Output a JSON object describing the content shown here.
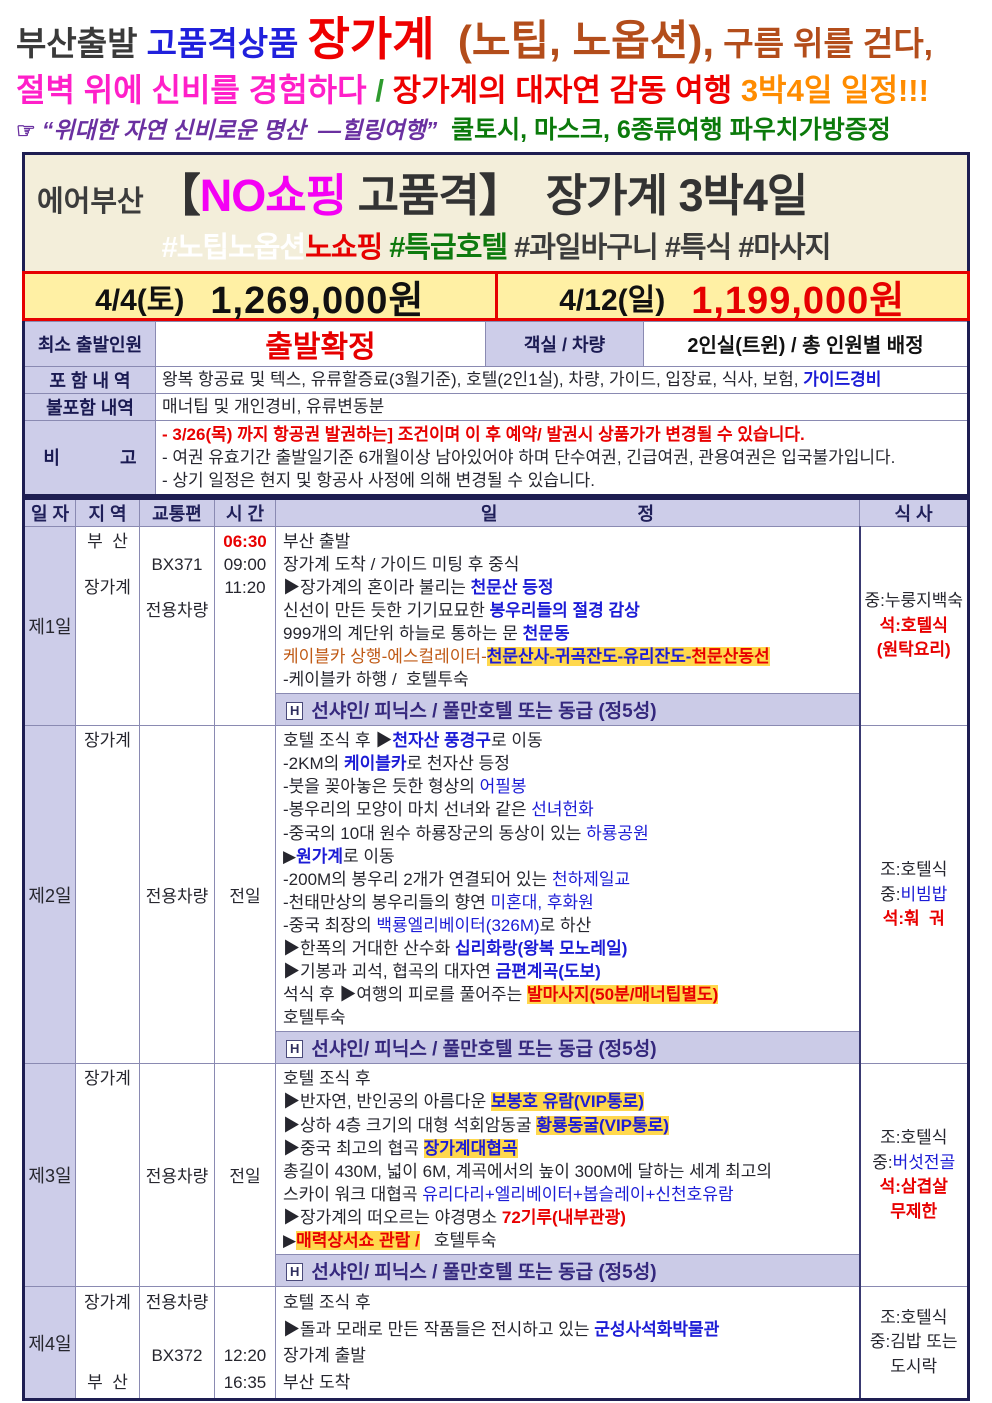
{
  "header": {
    "l1": {
      "a": "부산출발 ",
      "b": "고품격상품 ",
      "c": "장가계",
      "d": "  (노팁, 노옵션),",
      "e": " 구름 위를 걷다,"
    },
    "l2": {
      "a": "절벽 위에 신비를 경험하다 ",
      "b": "/ ",
      "c": "장가계의 대자연 감동 여행 ",
      "d": "3박4일 일정!!!"
    },
    "l3": {
      "a": "☞ ",
      "b": "“위대한 자연 신비로운 명산  —힐링여행”",
      "c": "  쿨토시, 마스크, 6종류여행 파우치가방증정"
    }
  },
  "title": {
    "airline": "에어부산",
    "t0": "【",
    "t1": "NO쇼핑",
    "t2": " 고품격】",
    "t3": "  장가계 3박4일",
    "h1": "#노팁노옵션",
    "h2": "노쇼핑",
    "h3": " #특급호텔",
    "h4": " #과일바구니 #특식 #마사지"
  },
  "prices": [
    {
      "date": "4/4(토)",
      "amount": "1,269,000원"
    },
    {
      "date": "4/12(일)",
      "amount": "1,199,000원"
    }
  ],
  "info": {
    "r1l": "최소 출발인원",
    "r1v": "출발확정",
    "r1l2": "객실 / 차량",
    "r1v2": "2인실(트윈) / 총 인원별 배정",
    "r2l": "포 함 내 역",
    "r2v": "왕복 항공료 및 텍스, 유류할증료(3월기준), 호텔(2인1실), 차량, 가이드, 입장료, 식사, 보험, ",
    "r2v_blue": "가이드경비",
    "r3l": "불포함 내역",
    "r3v": "매너팁 및 개인경비, 유류변동분",
    "r4l": "비            고",
    "r4lines": [
      {
        "t": "- 3/26(목) 까지 항공권 발권하는] 조건이며 이 후 예약/ 발권시 상품가가 변경될 수 있습니다.",
        "red": true
      },
      {
        "t": "- 여권 유효기간 출발일기준 6개월이상 남아있어야 하며 단수여권, 긴급여권, 관용여권은 입국불가입니다."
      },
      {
        "t": "- 상기 일정은 현지 및 항공사 사정에 의해 변경될 수 있습니다."
      }
    ]
  },
  "table": {
    "headers": [
      "일 자",
      "지 역",
      "교통편",
      "시 간",
      "일                            정",
      "식 사"
    ],
    "hotel_badge": "H",
    "days": [
      {
        "label": "제1일",
        "region": [
          {
            "t": "부  산"
          },
          {
            "t": ""
          },
          {
            "t": "장가계"
          }
        ],
        "transport": [
          {
            "t": ""
          },
          {
            "t": "BX371"
          },
          {
            "t": ""
          },
          {
            "t": "전용차량"
          }
        ],
        "time": [
          {
            "t": "06:30",
            "c": "red",
            "b": true
          },
          {
            "t": "09:00"
          },
          {
            "t": "11:20"
          }
        ],
        "lines": [
          [
            {
              "t": "부산 출발"
            }
          ],
          [
            {
              "t": "장가계 도착 / 가이드 미팅 후 중식"
            }
          ],
          [
            {
              "t": "▶장가계의 혼이라 불리는 "
            },
            {
              "t": "천문산 등정",
              "c": "blue",
              "b": true
            }
          ],
          [
            {
              "t": "신선이 만든 듯한 기기묘묘한 "
            },
            {
              "t": "봉우리들의 절경 감상",
              "c": "blue",
              "b": true
            }
          ],
          [
            {
              "t": "999개의 계단위 하늘로 통하는 문 "
            },
            {
              "t": "천문동",
              "c": "blue",
              "b": true
            }
          ],
          [
            {
              "t": "케이블카 상행-에스컬레이터-",
              "c": "orange"
            },
            {
              "t": "천문산사-귀곡잔도-유리잔도-",
              "c": "blue",
              "b": true,
              "hl": true
            },
            {
              "t": "천문산동선",
              "c": "red",
              "b": true,
              "hl": true
            }
          ],
          [
            {
              "t": "-케이블카 하행 /  호텔투숙"
            }
          ]
        ],
        "hotel": "선샤인/ 피닉스 / 풀만호텔 또는 동급 (정5성)",
        "meals": [
          [
            {
              "t": "중:누룽지백숙"
            }
          ],
          [
            {
              "t": "석:호텔식",
              "c": "red",
              "b": true
            }
          ],
          [
            {
              "t": "(원탁요리)",
              "c": "red",
              "b": true
            }
          ]
        ]
      },
      {
        "label": "제2일",
        "region": [
          {
            "t": "장가계"
          }
        ],
        "transport": {
          "mode": "center",
          "items": [
            {
              "t": "전용차량"
            }
          ]
        },
        "time": {
          "mode": "center",
          "items": [
            {
              "t": "전일"
            }
          ]
        },
        "lines": [
          [
            {
              "t": "호텔 조식 후 ▶"
            },
            {
              "t": "천자산 풍경구",
              "c": "blue",
              "b": true
            },
            {
              "t": "로 이동"
            }
          ],
          [
            {
              "t": "-2KM의 "
            },
            {
              "t": "케이블카",
              "c": "blue",
              "b": true
            },
            {
              "t": "로 천자산 등정"
            }
          ],
          [
            {
              "t": "-붓을 꽂아놓은 듯한 형상의 "
            },
            {
              "t": "어필봉",
              "c": "blue"
            }
          ],
          [
            {
              "t": "-봉우리의 모양이 마치 선녀와 같은 "
            },
            {
              "t": "선녀헌화",
              "c": "blue"
            }
          ],
          [
            {
              "t": "-중국의 10대 원수 하룡장군의 동상이 있는 "
            },
            {
              "t": "하룡공원",
              "c": "blue"
            }
          ],
          [
            {
              "t": "▶"
            },
            {
              "t": "원가계",
              "c": "blue",
              "b": true
            },
            {
              "t": "로 이동"
            }
          ],
          [
            {
              "t": "-200M의 봉우리 2개가 연결되어 있는 "
            },
            {
              "t": "천하제일교",
              "c": "blue"
            }
          ],
          [
            {
              "t": "-천태만상의 봉우리들의 향연 "
            },
            {
              "t": "미혼대, 후화원",
              "c": "blue"
            }
          ],
          [
            {
              "t": "-중국 최장의 "
            },
            {
              "t": "백룡엘리베이터(326M)",
              "c": "blue"
            },
            {
              "t": "로 하산"
            }
          ],
          [
            {
              "t": "▶한폭의 거대한 산수화 "
            },
            {
              "t": "십리화랑(왕복 모노레일)",
              "c": "blue",
              "b": true
            }
          ],
          [
            {
              "t": "▶기봉과 괴석, 협곡의 대자연 "
            },
            {
              "t": "금편계곡(도보)",
              "c": "blue",
              "b": true
            }
          ],
          [
            {
              "t": "석식 후 ▶여행의 피로를 풀어주는 "
            },
            {
              "t": "발마사지(50분/매너팁별도)",
              "c": "red",
              "b": true,
              "hl": true
            }
          ],
          [
            {
              "t": "호텔투숙"
            }
          ]
        ],
        "hotel": "선샤인/ 피닉스 / 풀만호텔 또는 동급 (정5성)",
        "meals": [
          [
            {
              "t": "조:호텔식"
            }
          ],
          [
            {
              "t": "중:"
            },
            {
              "t": "비빔밥",
              "c": "blue"
            }
          ],
          [
            {
              "t": "석:훠  궈",
              "c": "red",
              "b": true
            }
          ]
        ]
      },
      {
        "label": "제3일",
        "region": [
          {
            "t": "장가계"
          }
        ],
        "transport": {
          "mode": "center",
          "items": [
            {
              "t": "전용차량"
            }
          ]
        },
        "time": {
          "mode": "center",
          "items": [
            {
              "t": "전일"
            }
          ]
        },
        "lines": [
          [
            {
              "t": "호텔 조식 후"
            }
          ],
          [
            {
              "t": "▶반자연, 반인공의 아름다운 "
            },
            {
              "t": "보봉호 유람(VIP통로)",
              "c": "blue",
              "b": true,
              "hl": true
            }
          ],
          [
            {
              "t": "▶상하 4층 크기의 대형 석회암동굴 "
            },
            {
              "t": "황룡동굴(VIP통로)",
              "c": "blue",
              "b": true,
              "hl": true
            }
          ],
          [
            {
              "t": "▶중국 최고의 협곡 "
            },
            {
              "t": "장가계대협곡",
              "c": "blue",
              "b": true,
              "hl": true
            }
          ],
          [
            {
              "t": "총길이 430M, 넓이 6M, 계곡에서의 높이 300M에 달하는 세계 최고의"
            }
          ],
          [
            {
              "t": "스카이 워크 대협곡 "
            },
            {
              "t": "유리다리+엘리베이터+봅슬레이+신천호유람",
              "c": "blue"
            }
          ],
          [
            {
              "t": "▶장가계의 떠오르는 야경명소 "
            },
            {
              "t": "72기루(내부관광)",
              "c": "red",
              "b": true
            }
          ],
          [
            {
              "t": "▶"
            },
            {
              "t": "매력상서쇼 관람 /",
              "c": "red",
              "b": true,
              "hl": true
            },
            {
              "t": "   호텔투숙"
            }
          ]
        ],
        "hotel": "선샤인/ 피닉스 / 풀만호텔 또는 동급 (정5성)",
        "meals": [
          [
            {
              "t": "조:호텔식"
            }
          ],
          [
            {
              "t": "중:"
            },
            {
              "t": "버섯전골",
              "c": "blue"
            }
          ],
          [
            {
              "t": "석:삼겹살",
              "c": "red",
              "b": true
            }
          ],
          [
            {
              "t": "무제한",
              "c": "red",
              "b": true
            }
          ]
        ]
      },
      {
        "label": "제4일",
        "big": true,
        "region": [
          {
            "t": "장가계"
          },
          {
            "t": ""
          },
          {
            "t": ""
          },
          {
            "t": "부  산"
          }
        ],
        "transport": [
          {
            "t": "전용차량"
          },
          {
            "t": ""
          },
          {
            "t": "BX372"
          }
        ],
        "time": [
          {
            "t": ""
          },
          {
            "t": ""
          },
          {
            "t": "12:20"
          },
          {
            "t": "16:35"
          }
        ],
        "lines": [
          [
            {
              "t": "호텔 조식 후"
            }
          ],
          [
            {
              "t": "▶돌과 모래로 만든 작품들은 전시하고 있는 "
            },
            {
              "t": "군성사석화박물관",
              "c": "blue",
              "b": true
            }
          ],
          [
            {
              "t": "장가계 출발"
            }
          ],
          [
            {
              "t": "부산 도착"
            }
          ]
        ],
        "hotel": null,
        "meals": [
          [
            {
              "t": "조:호텔식"
            }
          ],
          [
            {
              "t": "중:김밥 또는"
            }
          ],
          [
            {
              "t": "도시락"
            }
          ]
        ]
      }
    ]
  }
}
